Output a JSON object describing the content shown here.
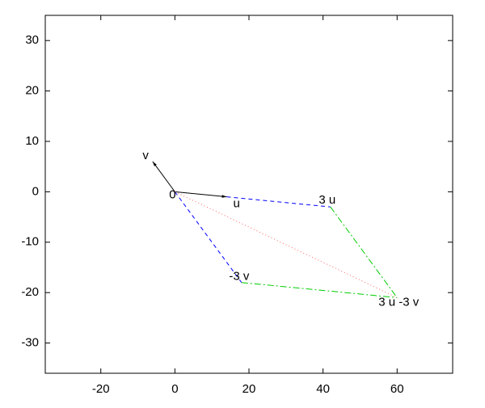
{
  "chart_data": {
    "type": "vector",
    "xlim": [
      -35,
      75
    ],
    "ylim": [
      -36,
      35
    ],
    "xticks": [
      -20,
      0,
      20,
      40,
      60
    ],
    "yticks": [
      -30,
      -20,
      -10,
      0,
      10,
      20,
      30
    ],
    "grid": false,
    "points": [
      {
        "label": "0",
        "x": 0,
        "y": 0
      },
      {
        "label": "u",
        "x": 14,
        "y": -1
      },
      {
        "label": "v",
        "x": -6,
        "y": 6
      },
      {
        "label": "3 u",
        "x": 42,
        "y": -3
      },
      {
        "label": "-3 v",
        "x": 18,
        "y": -18
      },
      {
        "label": "3 u -3 v",
        "x": 60,
        "y": -21
      }
    ],
    "segments": [
      {
        "x": [
          0,
          14
        ],
        "y": [
          0,
          -1
        ],
        "color": "#000000",
        "style": "solid",
        "arrow": true
      },
      {
        "x": [
          0,
          -6
        ],
        "y": [
          0,
          6
        ],
        "color": "#000000",
        "style": "solid",
        "arrow": true
      },
      {
        "x": [
          14,
          42
        ],
        "y": [
          -1,
          -3
        ],
        "color": "#0000ff",
        "style": "dashed",
        "arrow": false
      },
      {
        "x": [
          0,
          18
        ],
        "y": [
          0,
          -18
        ],
        "color": "#0000ff",
        "style": "dashed",
        "arrow": false
      },
      {
        "x": [
          42,
          60
        ],
        "y": [
          -3,
          -21
        ],
        "color": "#00cc00",
        "style": "dashdot",
        "arrow": false
      },
      {
        "x": [
          18,
          60
        ],
        "y": [
          -18,
          -21
        ],
        "color": "#00cc00",
        "style": "dashdot",
        "arrow": false
      },
      {
        "x": [
          0,
          60
        ],
        "y": [
          0,
          -21
        ],
        "color": "#ff6666",
        "style": "dotted",
        "arrow": false
      }
    ]
  }
}
